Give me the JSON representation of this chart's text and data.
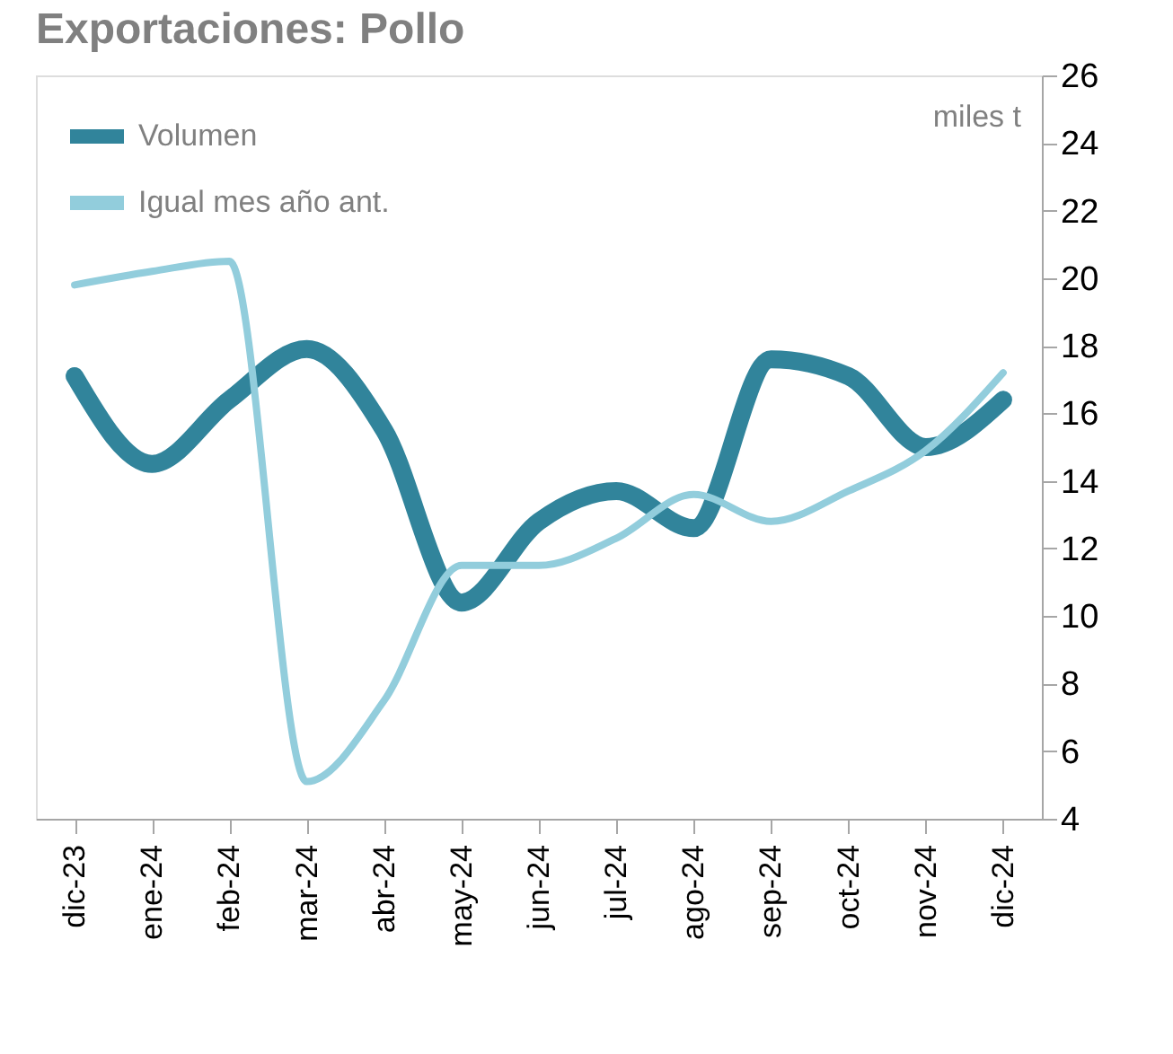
{
  "chart_data": {
    "type": "line",
    "title": "Exportaciones: Pollo",
    "ylabel": "miles t",
    "categories": [
      "dic-23",
      "ene-24",
      "feb-24",
      "mar-24",
      "abr-24",
      "may-24",
      "jun-24",
      "jul-24",
      "ago-24",
      "sep-24",
      "oct-24",
      "nov-24",
      "dic-24"
    ],
    "series": [
      {
        "name": "Volumen",
        "color": "#31849b",
        "values": [
          17.1,
          14.5,
          16.4,
          17.9,
          15.5,
          10.4,
          12.8,
          13.7,
          12.6,
          17.6,
          17.1,
          15.0,
          16.4
        ]
      },
      {
        "name": "Igual mes año ant.",
        "color": "#92cddc",
        "values": [
          19.8,
          20.2,
          20.5,
          5.1,
          7.5,
          11.5,
          11.5,
          12.3,
          13.6,
          12.8,
          13.7,
          14.9,
          17.2
        ]
      }
    ],
    "ylim": [
      4,
      26
    ],
    "yticks": [
      4,
      6,
      8,
      10,
      12,
      14,
      16,
      18,
      20,
      22,
      24,
      26
    ],
    "grid": false,
    "legend": "top left",
    "line_style": "solid",
    "marker": "none"
  }
}
